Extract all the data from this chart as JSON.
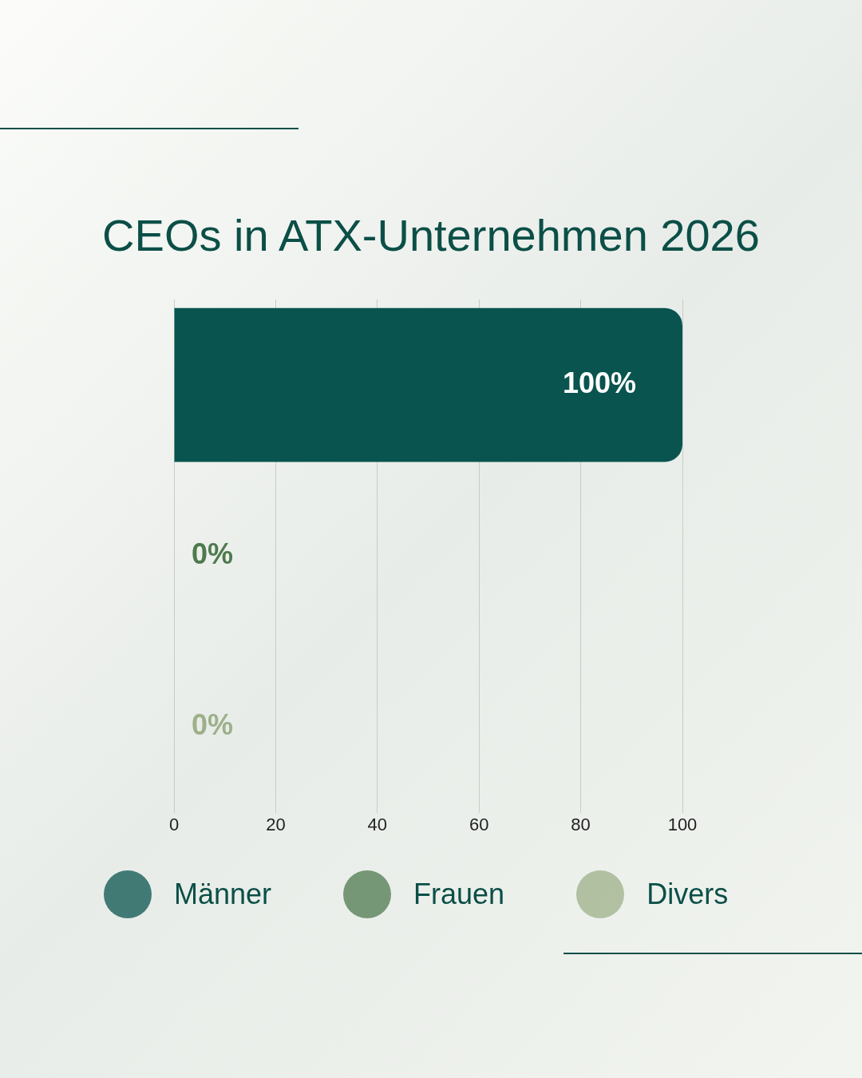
{
  "chart_data": {
    "type": "bar",
    "title": "CEOs in ATX-Unternehmen 2026",
    "orientation": "horizontal",
    "stacked": true,
    "categories": [
      null,
      null,
      null
    ],
    "series": [
      {
        "name": "Männer",
        "color": "#09544f",
        "values": [
          100,
          null,
          null
        ],
        "value_labels": [
          "100%",
          null,
          null
        ]
      },
      {
        "name": "Frauen",
        "color": "#4e7a4e",
        "values": [
          null,
          0,
          null
        ],
        "value_labels": [
          null,
          "0%",
          null
        ]
      },
      {
        "name": "Divers",
        "color": "#9db08a",
        "values": [
          null,
          null,
          0
        ],
        "value_labels": [
          null,
          null,
          "0%"
        ]
      }
    ],
    "xlim": [
      0,
      100
    ],
    "xticks": [
      0,
      20,
      40,
      60,
      80,
      100
    ],
    "grid": "x",
    "legend": "bottom"
  }
}
